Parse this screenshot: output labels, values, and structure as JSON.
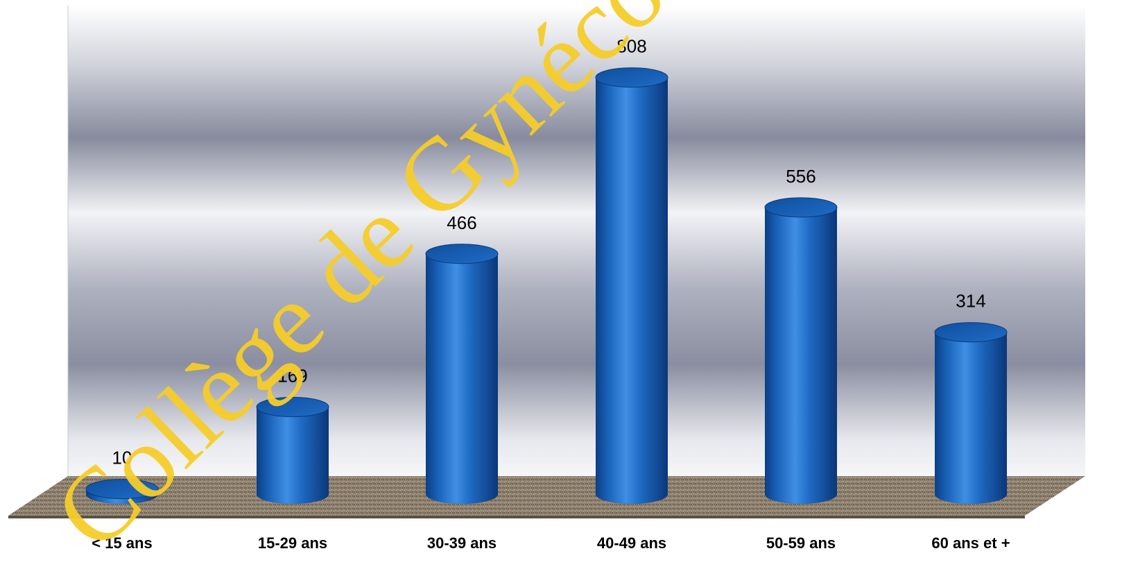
{
  "chart_data": {
    "type": "bar",
    "style": "3d-cylinder",
    "categories": [
      "< 15 ans",
      "15-29 ans",
      "30-39 ans",
      "40-49 ans",
      "50-59 ans",
      "60 ans et +"
    ],
    "values": [
      10,
      169,
      466,
      808,
      556,
      314
    ],
    "title": "",
    "xlabel": "",
    "ylabel": "",
    "ylim": [
      0,
      900
    ],
    "grid": false,
    "legend": "none",
    "bar_color": "#1a6fc9",
    "floor_color": "#8f8270"
  },
  "watermark": {
    "text": "Collège de Gynécologie",
    "color": "#f5cc2a"
  }
}
